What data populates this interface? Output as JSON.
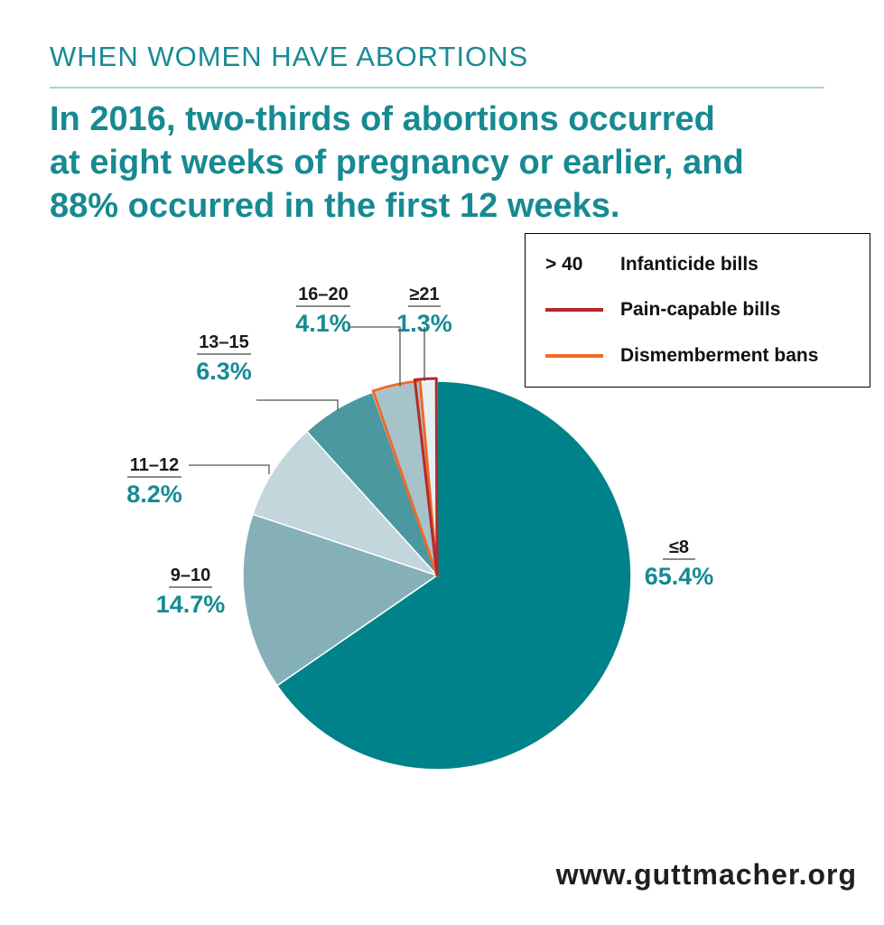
{
  "header": {
    "kicker": "WHEN WOMEN HAVE ABORTIONS",
    "headline_lines": [
      "In 2016, two-thirds of abortions occurred",
      "at eight weeks of pregnancy or earlier, and",
      "88% occurred in the first 12 weeks."
    ]
  },
  "legend": {
    "items": [
      {
        "key": "> 40",
        "label": "Infanticide bills",
        "color": ""
      },
      {
        "key": "",
        "label": "Pain-capable bills",
        "color": "#b8282d"
      },
      {
        "key": "",
        "label": "Dismemberment bans",
        "color": "#f06a25"
      }
    ]
  },
  "footer": {
    "source": "www.guttmacher.org"
  },
  "colors": {
    "teal_text": "#168a92",
    "s_le8": "#00828a",
    "s_9_10": "#86b0b8",
    "s_11_12": "#c2d6dc",
    "s_13_15": "#4c98a1",
    "s_16_20": "#a6c3ca",
    "s_ge21": "#e6eff1",
    "pain_capable": "#b8282d",
    "dismemberment": "#f06a25"
  },
  "chart_data": {
    "type": "pie",
    "title": "",
    "start": "12 o'clock, clockwise",
    "slices": [
      {
        "label": "≤8",
        "value": 65.4,
        "value_label": "65.4%"
      },
      {
        "label": "9–10",
        "value": 14.7,
        "value_label": "14.7%"
      },
      {
        "label": "11–12",
        "value": 8.2,
        "value_label": "8.2%"
      },
      {
        "label": "13–15",
        "value": 6.3,
        "value_label": "6.3%"
      },
      {
        "label": "16–20",
        "value": 4.1,
        "value_label": "4.1%"
      },
      {
        "label": "≥21",
        "value": 1.3,
        "value_label": "1.3%"
      }
    ],
    "overlays": [
      {
        "legend": "Pain-capable bills",
        "color": "#b8282d",
        "outlines": "≥21 and part of 16–20"
      },
      {
        "legend": "Dismemberment bans",
        "color": "#f06a25",
        "outlines": "part of 16–20"
      }
    ]
  }
}
